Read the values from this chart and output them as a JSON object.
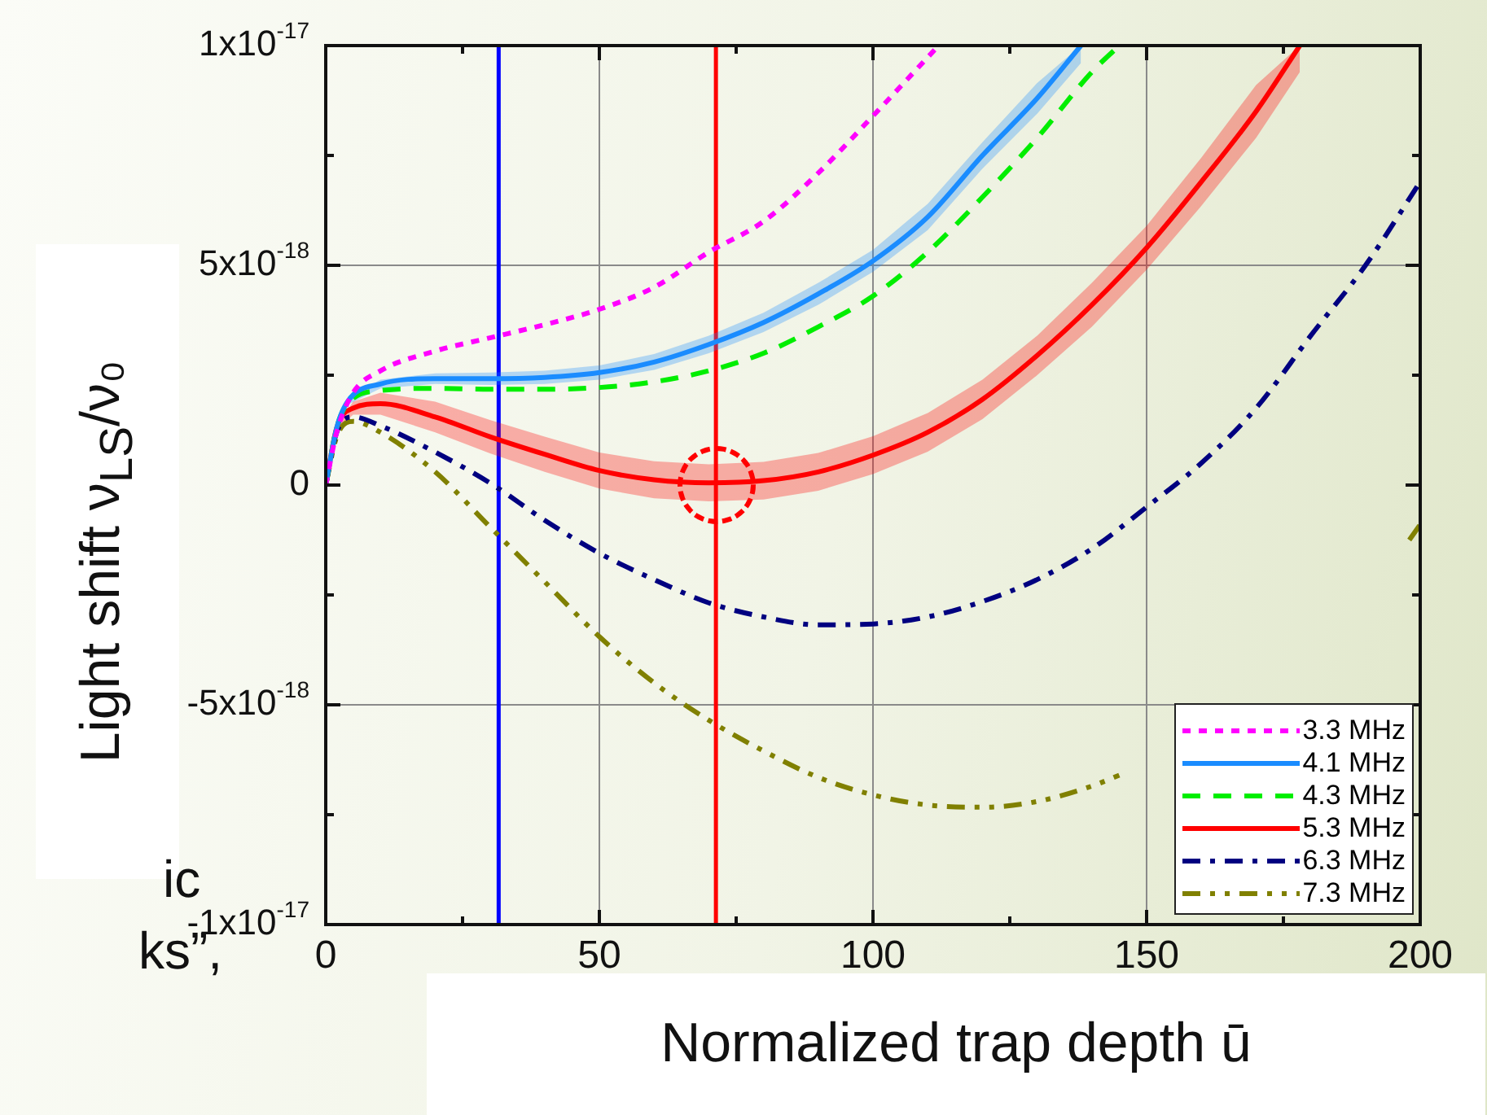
{
  "chart_data": {
    "type": "line",
    "xlabel": "Normalized trap depth ū",
    "ylabel": "Light shift ν$_{LS}$/ν₀",
    "xlim": [
      0,
      200
    ],
    "xticks": [
      0,
      {
        "value": 25,
        "label": null
      },
      50,
      {
        "value": 75,
        "label": null
      },
      100,
      {
        "value": 125,
        "label": null
      },
      150,
      {
        "value": 175,
        "label": null
      },
      200
    ],
    "ylim": [
      -1e-17,
      1e-17
    ],
    "yticks": [
      {
        "value": -1e-17,
        "label": "-1x10$^{-17}$"
      },
      {
        "value": -7.5e-18,
        "label": null
      },
      {
        "value": -5e-18,
        "label": "-5x10$^{-18}$"
      },
      {
        "value": -2.5e-18,
        "label": null
      },
      0,
      {
        "value": 2.5e-18,
        "label": null
      },
      {
        "value": 5e-18,
        "label": "5x10$^{-18}$"
      },
      {
        "value": 7.5e-18,
        "label": null
      },
      {
        "value": 1e-17,
        "label": "1x10$^{-17}$"
      }
    ],
    "grid": true,
    "legend": "bottom right",
    "marker": "none",
    "series": [
      {
        "name": "3.3 MHz",
        "color": "#ff00ff",
        "line_style": "dotted",
        "x": [
          0,
          2,
          5,
          10,
          20,
          30,
          40,
          50,
          60,
          70,
          80,
          90,
          100,
          112
        ],
        "values": [
          0,
          1.2e-18,
          2.1e-18,
          2.6e-18,
          3.05e-18,
          3.35e-18,
          3.65e-18,
          4e-18,
          4.5e-18,
          5.3e-18,
          6e-18,
          7.1e-18,
          8.4e-18,
          1e-17
        ]
      },
      {
        "name": "4.1 MHz",
        "color": "#1a8cff",
        "line_style": "solid",
        "x": [
          0,
          2,
          4,
          10,
          20,
          30,
          40,
          50,
          60,
          70,
          80,
          90,
          100,
          110,
          120,
          130,
          138
        ],
        "values": [
          0,
          1.3e-18,
          1.9e-18,
          2.3e-18,
          2.42e-18,
          2.42e-18,
          2.45e-18,
          2.56e-18,
          2.8e-18,
          3.2e-18,
          3.7e-18,
          4.35e-18,
          5.1e-18,
          6.1e-18,
          7.5e-18,
          8.8e-18,
          1e-17
        ],
        "lower": [
          0,
          1.25e-18,
          1.83e-18,
          2.2e-18,
          2.3e-18,
          2.28e-18,
          2.3e-18,
          2.4e-18,
          2.62e-18,
          3e-18,
          3.48e-18,
          4.1e-18,
          4.85e-18,
          5.8e-18,
          7.2e-18,
          8.45e-18,
          9.6e-18
        ],
        "upper": [
          0,
          1.35e-18,
          1.97e-18,
          2.4e-18,
          2.54e-18,
          2.56e-18,
          2.6e-18,
          2.72e-18,
          2.98e-18,
          3.4e-18,
          3.92e-18,
          4.6e-18,
          5.35e-18,
          6.4e-18,
          7.8e-18,
          9.15e-18,
          1e-17
        ]
      },
      {
        "name": "4.3 MHz",
        "color": "#00ee00",
        "line_style": "dashed",
        "x": [
          0,
          2,
          4,
          10,
          20,
          30,
          40,
          50,
          60,
          70,
          80,
          90,
          100,
          110,
          120,
          130,
          140,
          145
        ],
        "values": [
          0,
          1.3e-18,
          1.85e-18,
          2.15e-18,
          2.2e-18,
          2.18e-18,
          2.18e-18,
          2.22e-18,
          2.35e-18,
          2.6e-18,
          3e-18,
          3.6e-18,
          4.3e-18,
          5.3e-18,
          6.55e-18,
          7.9e-18,
          9.4e-18,
          1e-17
        ]
      },
      {
        "name": "5.3 MHz",
        "color": "#ff0000",
        "line_style": "solid",
        "x": [
          0,
          2,
          5,
          10,
          20,
          30,
          40,
          50,
          60,
          70,
          80,
          90,
          100,
          110,
          120,
          130,
          140,
          150,
          160,
          170,
          178
        ],
        "values": [
          0,
          1.3e-18,
          1.75e-18,
          1.85e-18,
          1.55e-18,
          1.1e-18,
          7e-19,
          3.3e-19,
          1.2e-19,
          5e-20,
          1e-19,
          3e-19,
          6.8e-19,
          1.2e-18,
          1.95e-18,
          2.95e-18,
          4.1e-18,
          5.4e-18,
          6.9e-18,
          8.5e-18,
          1e-17
        ],
        "lower": [
          0,
          1.25e-18,
          1.6e-18,
          1.6e-18,
          1.2e-18,
          7.2e-19,
          3e-19,
          -8e-20,
          -3e-19,
          -3.7e-19,
          -3.3e-19,
          -1.3e-19,
          2.5e-19,
          7.6e-19,
          1.5e-18,
          2.5e-18,
          3.6e-18,
          4.9e-18,
          6.35e-18,
          7.9e-18,
          9.4e-18
        ],
        "upper": [
          0,
          1.35e-18,
          1.9e-18,
          2.1e-18,
          1.9e-18,
          1.48e-18,
          1.1e-18,
          7.4e-19,
          5.4e-19,
          4.7e-19,
          5.3e-19,
          7.3e-19,
          1.11e-18,
          1.64e-18,
          2.4e-18,
          3.4e-18,
          4.6e-18,
          5.9e-18,
          7.45e-18,
          9.1e-18,
          1e-17
        ]
      },
      {
        "name": "6.3 MHz",
        "color": "#000080",
        "line_style": "dashdot",
        "x": [
          0,
          2,
          5,
          10,
          20,
          30,
          40,
          50,
          60,
          70,
          80,
          90,
          100,
          110,
          120,
          130,
          140,
          150,
          160,
          170,
          180,
          190,
          200
        ],
        "values": [
          0,
          1.2e-18,
          1.55e-18,
          1.35e-18,
          7.5e-19,
          5e-20,
          -8e-19,
          -1.55e-18,
          -2.15e-18,
          -2.68e-18,
          -3e-18,
          -3.18e-18,
          -3.16e-18,
          -3e-18,
          -2.65e-18,
          -2.15e-18,
          -1.45e-18,
          -5e-19,
          5e-19,
          1.75e-18,
          3.4e-18,
          5e-18,
          6.9e-18
        ]
      },
      {
        "name": "7.3 MHz",
        "color": "#808000",
        "line_style": "dashdotdot",
        "x": [
          0,
          2,
          5,
          10,
          20,
          30,
          40,
          50,
          60,
          70,
          80,
          90,
          100,
          110,
          120,
          130,
          140,
          145,
          170,
          198,
          200
        ],
        "values": [
          0,
          1.1e-18,
          1.45e-18,
          1.2e-18,
          3e-19,
          -9.5e-19,
          -2.2e-18,
          -3.45e-18,
          -4.5e-18,
          -5.35e-18,
          -6.05e-18,
          -6.65e-18,
          -7.05e-18,
          -7.28e-18,
          -7.33e-18,
          -7.2e-18,
          -6.85e-18,
          -6.6e-18,
          null,
          -1.25e-18,
          -9e-19
        ]
      }
    ],
    "ref_lines": [
      {
        "axis": "x",
        "value": 31.6,
        "color": "#0000ff"
      },
      {
        "axis": "x",
        "value": 71.3,
        "color": "#ff0000"
      }
    ],
    "annotations": [
      "ic",
      "ks”,"
    ]
  }
}
